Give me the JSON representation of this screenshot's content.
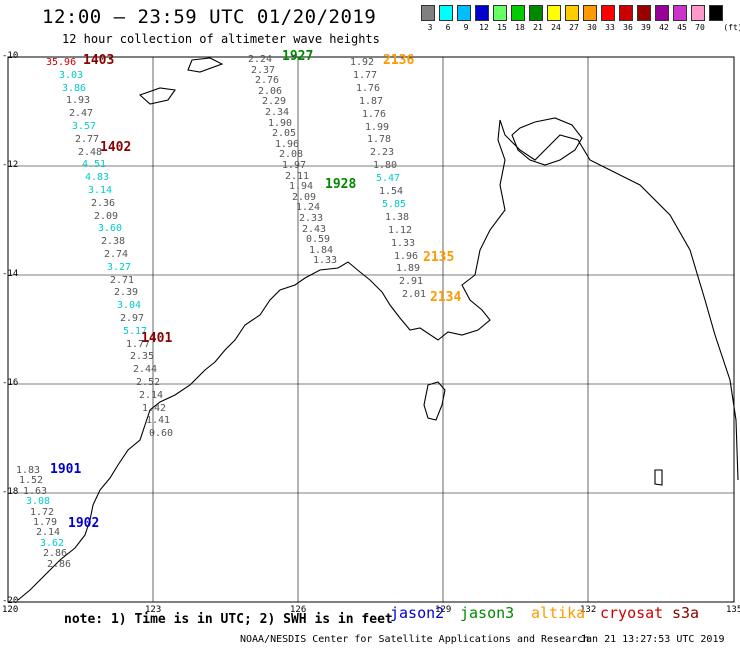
{
  "header": {
    "title": "12:00 – 23:59 UTC 01/20/2019",
    "subtitle": "12 hour collection of altimeter wave heights"
  },
  "legend": {
    "unit": "(ft)",
    "items": [
      {
        "label": "3",
        "color": "#808080"
      },
      {
        "label": "6",
        "color": "#00ffff"
      },
      {
        "label": "9",
        "color": "#00bfff"
      },
      {
        "label": "12",
        "color": "#0000cd"
      },
      {
        "label": "15",
        "color": "#66ff66"
      },
      {
        "label": "18",
        "color": "#00cc00"
      },
      {
        "label": "21",
        "color": "#008800"
      },
      {
        "label": "24",
        "color": "#ffff00"
      },
      {
        "label": "27",
        "color": "#ffcc00"
      },
      {
        "label": "30",
        "color": "#ff9900"
      },
      {
        "label": "33",
        "color": "#ff0000"
      },
      {
        "label": "36",
        "color": "#cc0000"
      },
      {
        "label": "39",
        "color": "#990000"
      },
      {
        "label": "42",
        "color": "#990099"
      },
      {
        "label": "45",
        "color": "#cc33cc"
      },
      {
        "label": "70",
        "color": "#ff99cc"
      },
      {
        "label": "",
        "color": "#000000"
      }
    ]
  },
  "axes": {
    "lon_labels": [
      "120",
      "123",
      "126",
      "129",
      "132",
      "135"
    ],
    "lat_labels": [
      "-10",
      "-12",
      "-14",
      "-16",
      "-18",
      "-20"
    ]
  },
  "track_labels": [
    {
      "text": "1403",
      "sat": "cryosat"
    },
    {
      "text": "1402",
      "sat": "cryosat"
    },
    {
      "text": "1401",
      "sat": "cryosat"
    },
    {
      "text": "1927",
      "sat": "jason3"
    },
    {
      "text": "1928",
      "sat": "jason3"
    },
    {
      "text": "2136",
      "sat": "altika"
    },
    {
      "text": "2135",
      "sat": "altika"
    },
    {
      "text": "2134",
      "sat": "altika"
    },
    {
      "text": "1901",
      "sat": "jason2"
    },
    {
      "text": "1902",
      "sat": "jason2"
    }
  ],
  "tracks": {
    "cryosat": [
      "35.96",
      "3.03",
      "3.86",
      "1.93",
      "2.47",
      "3.57",
      "2.77",
      "2.48",
      "4.51",
      "4.83",
      "3.14",
      "2.36",
      "2.09",
      "3.60",
      "2.38",
      "2.74",
      "3.27",
      "2.71",
      "2.39",
      "3.04",
      "2.97",
      "5.17",
      "1.77",
      "2.35",
      "2.44",
      "2.52",
      "2.14",
      "1.42",
      "1.41",
      "0.60"
    ],
    "jason3": [
      "2.24",
      "2.37",
      "2.76",
      "2.06",
      "2.29",
      "2.34",
      "1.90",
      "2.05",
      "1.96",
      "2.08",
      "1.97",
      "2.11",
      "1.94",
      "2.09",
      "1.24",
      "2.33",
      "2.43",
      "0.59",
      "1.84",
      "1.33"
    ],
    "altika": [
      "1.92",
      "1.77",
      "1.76",
      "1.87",
      "1.76",
      "1.99",
      "1.78",
      "2.23",
      "1.80",
      "5.47",
      "1.54",
      "5.85",
      "1.38",
      "1.12",
      "1.33",
      "1.96",
      "1.89",
      "2.91",
      "2.01"
    ],
    "jason2": [
      "1.83",
      "1.52",
      "1.63",
      "3.08",
      "1.72",
      "1.79",
      "2.14",
      "3.62",
      "2.86",
      "2.86"
    ]
  },
  "note": "note: 1) Time is in UTC; 2) SWH is in feet",
  "satellites": [
    {
      "name": "jason2",
      "color": "#0000cc"
    },
    {
      "name": "jason3",
      "color": "#008800"
    },
    {
      "name": "altika",
      "color": "#ff9900"
    },
    {
      "name": "cryosat",
      "color": "#cc0000"
    },
    {
      "name": "s3a",
      "color": "#880000"
    }
  ],
  "footer": "NOAA/NESDIS Center for Satellite Applications and Research",
  "timestamp": "Jan 21 13:27:53 UTC 2019"
}
